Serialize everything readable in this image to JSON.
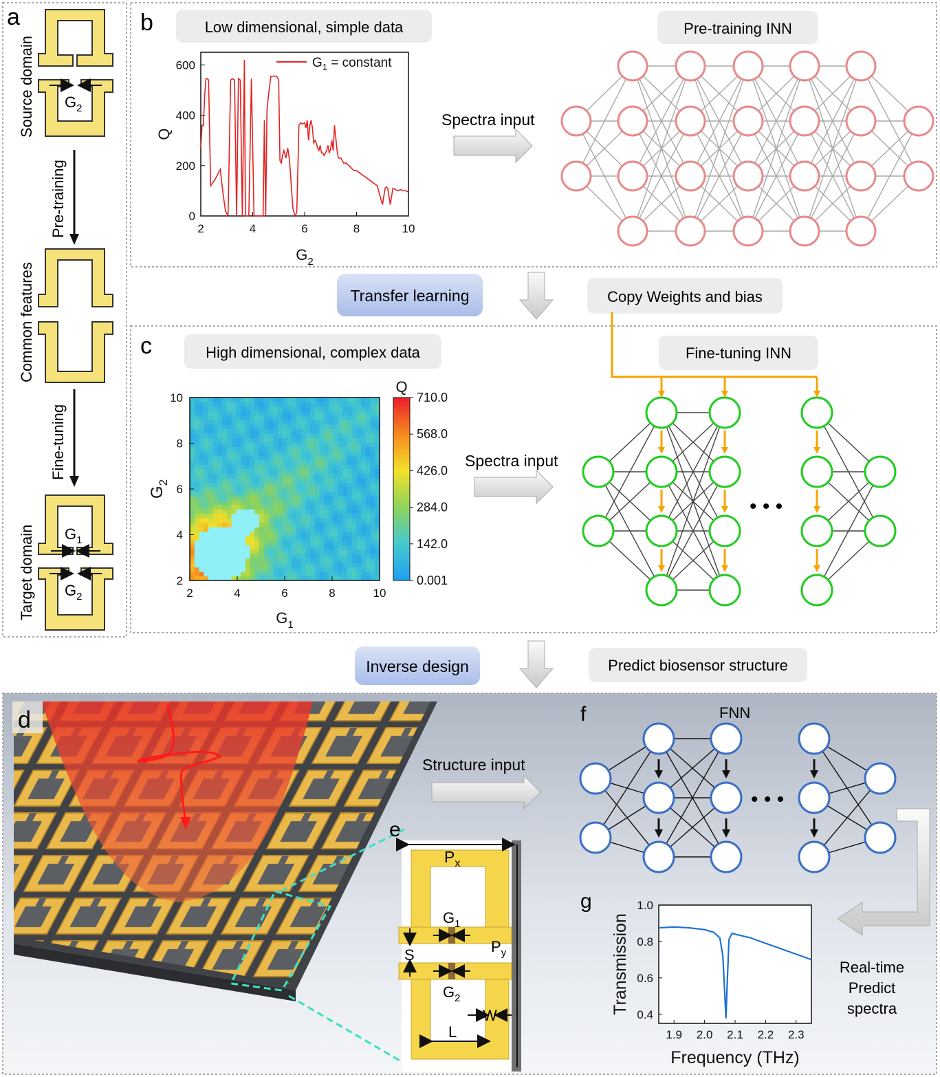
{
  "panel_letters": {
    "a": "a",
    "b": "b",
    "c": "c",
    "d": "d",
    "e": "e",
    "f": "f",
    "g": "g"
  },
  "panel_a": {
    "source_domain": "Source domain",
    "pre_training": "Pre-training",
    "common_features": "Common features",
    "fine_tuning": "Fine-tuning",
    "target_domain": "Target domain",
    "g1": "G",
    "g1_sub": "1",
    "g2": "G",
    "g2_sub": "2"
  },
  "panel_b": {
    "header": "Low dimensional, simple data",
    "nn_title": "Pre-training INN",
    "spectra_input": "Spectra input"
  },
  "middle": {
    "transfer_learning": "Transfer learning",
    "copy_weights": "Copy Weights and bias",
    "inverse_design": "Inverse design",
    "predict_structure": "Predict biosensor structure"
  },
  "panel_c": {
    "header": "High dimensional, complex data",
    "nn_title": "Fine-tuning INN",
    "spectra_input": "Spectra input",
    "colorbar_title": "Q",
    "colorbar_ticks": [
      "710.0",
      "568.0",
      "426.0",
      "284.0",
      "142.0",
      "0.001"
    ],
    "ellipsis": "• • •"
  },
  "panel_d": {
    "structure_input": "Structure input"
  },
  "panel_e": {
    "px": "P",
    "px_sub": "x",
    "py": "P",
    "py_sub": "y",
    "g1": "G",
    "g1_sub": "1",
    "g2": "G",
    "g2_sub": "2",
    "s": "S",
    "w": "W",
    "l": "L"
  },
  "panel_f": {
    "title": "FNN",
    "ellipsis": "• • •"
  },
  "panel_g": {
    "realtime": [
      "Real-time",
      "Predict",
      "spectra"
    ]
  },
  "colors": {
    "pretrain_node": "#e88a8a",
    "finetune_node": "#22cc22",
    "fnn_node": "#3b6fc4",
    "arrow_orange": "#f5a300",
    "structure_gold": "#f5e27a",
    "q_line": "#e52222",
    "transmission_line": "#1f6fd1"
  },
  "chart_data": [
    {
      "type": "line",
      "title": "",
      "xlabel": "G",
      "xlabel_sub": "2",
      "ylabel": "Q",
      "xlim": [
        2,
        10
      ],
      "ylim": [
        0,
        650
      ],
      "xticks": [
        2,
        4,
        6,
        8,
        10
      ],
      "yticks": [
        0,
        200,
        400,
        600
      ],
      "legend": "G",
      "legend_sub": "1",
      "legend_rest": " = constant",
      "series": [
        {
          "name": "G1 = constant",
          "x": [
            2.0,
            2.05,
            2.1,
            2.15,
            2.2,
            2.25,
            2.3,
            2.38,
            2.45,
            2.55,
            2.65,
            2.75,
            2.85,
            2.95,
            3.05,
            3.15,
            3.22,
            3.3,
            3.38,
            3.45,
            3.52,
            3.6,
            3.68,
            3.72,
            3.78,
            3.85,
            3.95,
            4.05,
            4.15,
            4.25,
            4.35,
            4.4,
            4.45,
            4.5,
            4.55,
            4.62,
            4.7,
            4.78,
            4.85,
            4.92,
            5.0,
            5.05,
            5.1,
            5.15,
            5.2,
            5.28,
            5.35,
            5.42,
            5.5,
            5.55,
            5.6,
            5.65,
            5.7,
            5.78,
            5.85,
            5.92,
            6.0,
            6.05,
            6.1,
            6.15,
            6.2,
            6.25,
            6.3,
            6.35,
            6.4,
            6.45,
            6.5,
            6.55,
            6.6,
            6.65,
            6.7,
            6.75,
            6.8,
            6.85,
            6.9,
            6.95,
            7.0,
            7.05,
            7.1,
            7.15,
            7.2,
            7.25,
            7.3,
            7.35,
            7.4,
            7.5,
            7.6,
            7.7,
            7.8,
            7.9,
            8.0,
            8.2,
            8.4,
            8.6,
            8.8,
            8.9,
            9.0,
            9.1,
            9.15,
            9.2,
            9.3,
            9.4,
            9.5,
            9.6,
            9.7,
            9.8,
            9.9,
            10.0
          ],
          "y": [
            270,
            360,
            360,
            480,
            545,
            545,
            540,
            120,
            130,
            145,
            165,
            185,
            95,
            20,
            0,
            540,
            545,
            540,
            0,
            545,
            540,
            0,
            620,
            0,
            0,
            0,
            545,
            0,
            0,
            0,
            0,
            0,
            380,
            0,
            420,
            490,
            555,
            555,
            555,
            555,
            540,
            220,
            210,
            240,
            260,
            230,
            270,
            220,
            100,
            30,
            10,
            0,
            20,
            360,
            370,
            365,
            370,
            350,
            380,
            300,
            360,
            380,
            350,
            290,
            300,
            290,
            270,
            260,
            280,
            250,
            250,
            240,
            250,
            260,
            280,
            250,
            265,
            300,
            260,
            360,
            310,
            260,
            230,
            230,
            230,
            210,
            210,
            200,
            190,
            180,
            180,
            165,
            150,
            135,
            120,
            80,
            45,
            110,
            115,
            110,
            45,
            110,
            105,
            100,
            105,
            100,
            100,
            95
          ]
        }
      ]
    },
    {
      "type": "heatmap",
      "title": "",
      "xlabel": "G",
      "xlabel_sub": "1",
      "ylabel": "G",
      "ylabel_sub": "2",
      "xlim": [
        2,
        10
      ],
      "ylim": [
        2,
        10
      ],
      "xticks": [
        2,
        4,
        6,
        8,
        10
      ],
      "yticks": [
        2,
        4,
        6,
        8,
        10
      ],
      "zlim": [
        0.001,
        710.0
      ],
      "colorbar_label": "Q",
      "grid_size": 41,
      "colormap": [
        "#1fa0f0",
        "#45c8cf",
        "#8ed35b",
        "#f2e02a",
        "#f68a1e",
        "#ea1d2d"
      ]
    },
    {
      "type": "line",
      "title": "",
      "xlabel": "Frequency (THz)",
      "ylabel": "Transmission",
      "xlim": [
        1.85,
        2.35
      ],
      "ylim": [
        0.35,
        1.0
      ],
      "xticks": [
        1.9,
        2.0,
        2.1,
        2.2,
        2.3
      ],
      "yticks": [
        0.4,
        0.6,
        0.8,
        1.0
      ],
      "series": [
        {
          "name": "Transmission",
          "x": [
            1.85,
            1.9,
            1.95,
            2.0,
            2.03,
            2.05,
            2.06,
            2.065,
            2.07,
            2.075,
            2.08,
            2.09,
            2.1,
            2.15,
            2.2,
            2.25,
            2.3,
            2.35
          ],
          "y": [
            0.875,
            0.88,
            0.875,
            0.865,
            0.85,
            0.82,
            0.72,
            0.55,
            0.38,
            0.6,
            0.81,
            0.845,
            0.84,
            0.82,
            0.79,
            0.76,
            0.73,
            0.7
          ]
        }
      ]
    }
  ]
}
